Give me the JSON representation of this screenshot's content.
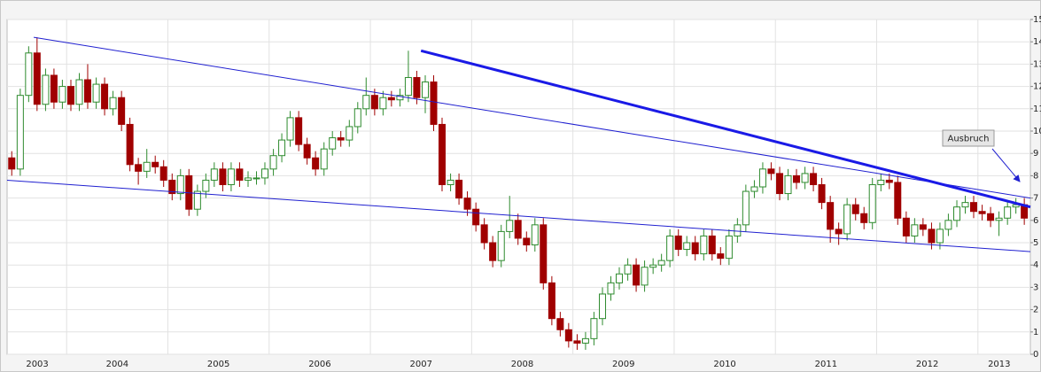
{
  "chart_data": {
    "type": "candlestick",
    "x": [
      2003.458,
      2003.542,
      2003.625,
      2003.708,
      2003.792,
      2003.875,
      2003.958,
      2004.042,
      2004.125,
      2004.208,
      2004.292,
      2004.375,
      2004.458,
      2004.542,
      2004.625,
      2004.708,
      2004.792,
      2004.875,
      2004.958,
      2005.042,
      2005.125,
      2005.208,
      2005.292,
      2005.375,
      2005.458,
      2005.542,
      2005.625,
      2005.708,
      2005.792,
      2005.875,
      2005.958,
      2006.042,
      2006.125,
      2006.208,
      2006.292,
      2006.375,
      2006.458,
      2006.542,
      2006.625,
      2006.708,
      2006.792,
      2006.875,
      2006.958,
      2007.042,
      2007.125,
      2007.208,
      2007.292,
      2007.375,
      2007.458,
      2007.542,
      2007.625,
      2007.708,
      2007.792,
      2007.875,
      2007.958,
      2008.042,
      2008.125,
      2008.208,
      2008.292,
      2008.375,
      2008.458,
      2008.542,
      2008.625,
      2008.708,
      2008.792,
      2008.875,
      2008.958,
      2009.042,
      2009.125,
      2009.208,
      2009.292,
      2009.375,
      2009.458,
      2009.542,
      2009.625,
      2009.708,
      2009.792,
      2009.875,
      2009.958,
      2010.042,
      2010.125,
      2010.208,
      2010.292,
      2010.375,
      2010.458,
      2010.542,
      2010.625,
      2010.708,
      2010.792,
      2010.875,
      2010.958,
      2011.042,
      2011.125,
      2011.208,
      2011.292,
      2011.375,
      2011.458,
      2011.542,
      2011.625,
      2011.708,
      2011.792,
      2011.875,
      2011.958,
      2012.042,
      2012.125,
      2012.208,
      2012.292,
      2012.375,
      2012.458,
      2012.542,
      2012.625,
      2012.708,
      2012.792,
      2012.875,
      2012.958,
      2013.042,
      2013.125,
      2013.208,
      2013.292,
      2013.375,
      2013.458
    ],
    "open": [
      8.8,
      8.3,
      11.6,
      13.5,
      11.2,
      12.5,
      11.3,
      12.0,
      11.2,
      12.3,
      11.3,
      12.1,
      11.0,
      11.5,
      10.3,
      8.5,
      8.2,
      8.6,
      8.4,
      7.8,
      7.2,
      8.0,
      6.5,
      7.3,
      7.8,
      8.3,
      7.6,
      8.3,
      7.8,
      7.9,
      7.9,
      8.3,
      8.9,
      9.6,
      10.6,
      9.4,
      8.8,
      8.3,
      9.2,
      9.7,
      9.6,
      10.2,
      11.0,
      11.6,
      11.0,
      11.5,
      11.4,
      11.6,
      12.4,
      11.5,
      12.2,
      10.3,
      7.6,
      7.8,
      7.0,
      6.5,
      5.8,
      5.0,
      4.2,
      5.5,
      6.0,
      5.2,
      4.9,
      5.8,
      3.2,
      1.6,
      1.1,
      0.6,
      0.5,
      0.7,
      1.6,
      2.7,
      3.2,
      3.6,
      4.0,
      3.1,
      3.9,
      4.0,
      4.2,
      5.3,
      4.7,
      5.0,
      4.5,
      5.3,
      4.5,
      4.3,
      5.3,
      5.8,
      7.3,
      7.5,
      8.3,
      8.1,
      7.2,
      8.0,
      7.7,
      8.1,
      7.6,
      6.8,
      5.6,
      5.4,
      6.7,
      6.3,
      5.9,
      7.6,
      7.8,
      7.7,
      6.1,
      5.3,
      5.8,
      5.6,
      5.0,
      5.6,
      6.0,
      6.6,
      6.8,
      6.4,
      6.3,
      6.0,
      6.1,
      6.6,
      6.7
    ],
    "high": [
      9.1,
      11.9,
      13.8,
      14.2,
      12.8,
      12.8,
      12.3,
      12.3,
      12.6,
      13.0,
      12.4,
      12.4,
      11.8,
      11.8,
      10.6,
      8.8,
      9.2,
      8.9,
      8.7,
      8.1,
      8.3,
      8.3,
      7.6,
      8.1,
      8.6,
      8.6,
      8.6,
      8.6,
      8.2,
      8.2,
      8.6,
      9.2,
      9.9,
      10.9,
      10.9,
      9.7,
      9.1,
      9.5,
      10.0,
      10.0,
      10.5,
      11.3,
      12.4,
      11.9,
      11.8,
      11.8,
      11.9,
      13.6,
      12.7,
      12.5,
      12.5,
      10.6,
      8.1,
      8.1,
      7.3,
      6.8,
      6.1,
      5.3,
      5.8,
      7.1,
      6.3,
      5.5,
      6.1,
      6.1,
      3.5,
      1.9,
      1.4,
      0.9,
      1.0,
      1.9,
      3.0,
      3.5,
      3.9,
      4.3,
      4.3,
      4.2,
      4.3,
      4.5,
      5.6,
      5.6,
      5.3,
      5.3,
      5.6,
      5.6,
      4.8,
      5.6,
      6.1,
      7.6,
      7.8,
      8.6,
      8.6,
      8.4,
      8.3,
      8.3,
      8.4,
      8.4,
      7.9,
      7.1,
      5.9,
      7.0,
      7.0,
      6.6,
      7.9,
      8.1,
      8.1,
      8.0,
      6.4,
      6.1,
      6.1,
      5.9,
      5.9,
      6.3,
      6.9,
      7.1,
      7.1,
      6.7,
      6.6,
      6.4,
      6.9,
      7.0,
      7.0
    ],
    "low": [
      8.0,
      8.0,
      11.3,
      10.9,
      10.9,
      11.0,
      11.0,
      10.9,
      10.9,
      11.0,
      11.0,
      10.7,
      10.7,
      10.0,
      8.2,
      7.6,
      7.9,
      8.1,
      7.5,
      6.9,
      6.9,
      6.2,
      6.2,
      7.0,
      7.5,
      7.3,
      7.3,
      7.5,
      7.5,
      7.6,
      7.6,
      8.0,
      8.6,
      9.3,
      9.1,
      8.5,
      8.0,
      8.0,
      8.9,
      9.3,
      9.3,
      9.9,
      10.7,
      10.7,
      10.7,
      11.1,
      11.1,
      11.3,
      11.2,
      10.8,
      10.0,
      7.3,
      7.3,
      6.7,
      6.2,
      5.5,
      4.7,
      3.9,
      3.9,
      5.2,
      4.9,
      4.6,
      4.6,
      2.9,
      1.3,
      0.8,
      0.3,
      0.2,
      0.2,
      0.4,
      1.3,
      2.4,
      2.9,
      3.3,
      2.8,
      2.8,
      3.6,
      3.7,
      3.9,
      4.4,
      4.4,
      4.2,
      4.2,
      4.2,
      4.0,
      4.0,
      5.0,
      5.5,
      7.0,
      7.2,
      7.8,
      6.9,
      6.9,
      7.4,
      7.4,
      7.3,
      6.5,
      5.0,
      4.9,
      5.1,
      6.0,
      5.6,
      5.6,
      7.3,
      7.4,
      5.8,
      5.0,
      5.0,
      5.3,
      4.7,
      4.7,
      5.3,
      5.7,
      6.3,
      6.1,
      6.0,
      5.7,
      5.3,
      5.8,
      6.3,
      5.8
    ],
    "close": [
      8.3,
      11.6,
      13.5,
      11.2,
      12.5,
      11.3,
      12.0,
      11.2,
      12.3,
      11.3,
      12.1,
      11.0,
      11.5,
      10.3,
      8.5,
      8.2,
      8.6,
      8.4,
      7.8,
      7.2,
      8.0,
      6.5,
      7.3,
      7.8,
      8.3,
      7.6,
      8.3,
      7.8,
      7.9,
      7.9,
      8.3,
      8.9,
      9.6,
      10.6,
      9.4,
      8.8,
      8.3,
      9.2,
      9.7,
      9.6,
      10.2,
      11.0,
      11.6,
      11.0,
      11.5,
      11.4,
      11.6,
      12.4,
      11.5,
      12.2,
      10.3,
      7.6,
      7.8,
      7.0,
      6.5,
      5.8,
      5.0,
      4.2,
      5.5,
      6.0,
      5.2,
      4.9,
      5.8,
      3.2,
      1.6,
      1.1,
      0.6,
      0.5,
      0.7,
      1.6,
      2.7,
      3.2,
      3.6,
      4.0,
      3.1,
      3.9,
      4.0,
      4.2,
      5.3,
      4.7,
      5.0,
      4.5,
      5.3,
      4.5,
      4.3,
      5.3,
      5.8,
      7.3,
      7.5,
      8.3,
      8.1,
      7.2,
      8.0,
      7.7,
      8.1,
      7.6,
      6.8,
      5.6,
      5.4,
      6.7,
      6.3,
      5.9,
      7.6,
      7.8,
      7.7,
      6.1,
      5.3,
      5.8,
      5.6,
      5.0,
      5.6,
      6.0,
      6.6,
      6.8,
      6.4,
      6.3,
      6.0,
      6.1,
      6.6,
      6.7,
      6.1
    ],
    "up_color": "#2e8b2e",
    "down_color": "#a00000",
    "xlim": [
      2003.412,
      2013.518
    ],
    "xticks": [
      {
        "value": 2003.71,
        "label": "2003"
      },
      {
        "value": 2004.5,
        "label": "2004"
      },
      {
        "value": 2005.5,
        "label": "2005"
      },
      {
        "value": 2006.5,
        "label": "2006"
      },
      {
        "value": 2007.5,
        "label": "2007"
      },
      {
        "value": 2008.5,
        "label": "2008"
      },
      {
        "value": 2009.5,
        "label": "2009"
      },
      {
        "value": 2010.5,
        "label": "2010"
      },
      {
        "value": 2011.5,
        "label": "2011"
      },
      {
        "value": 2012.5,
        "label": "2012"
      },
      {
        "value": 2013.21,
        "label": "2013"
      }
    ],
    "xgrid": [
      2004,
      2005,
      2006,
      2007,
      2008,
      2009,
      2010,
      2011,
      2012,
      2013
    ],
    "ylim": [
      0,
      15
    ],
    "yticks": [
      0,
      1,
      2,
      3,
      4,
      5,
      6,
      7,
      8,
      9,
      10,
      11,
      12,
      13,
      14,
      15
    ],
    "grid": true,
    "trendlines": [
      {
        "x": [
          2003.675,
          2013.518
        ],
        "y": [
          14.2,
          7.0
        ],
        "color": "#2020d0",
        "width": 1
      },
      {
        "x": [
          2003.412,
          2013.518
        ],
        "y": [
          7.8,
          4.6
        ],
        "color": "#2020d0",
        "width": 1
      },
      {
        "x": [
          2007.5,
          2013.518
        ],
        "y": [
          13.6,
          6.6
        ],
        "color": "#1a1ae6",
        "width": 3
      }
    ],
    "annotation": "Ausbruch"
  }
}
